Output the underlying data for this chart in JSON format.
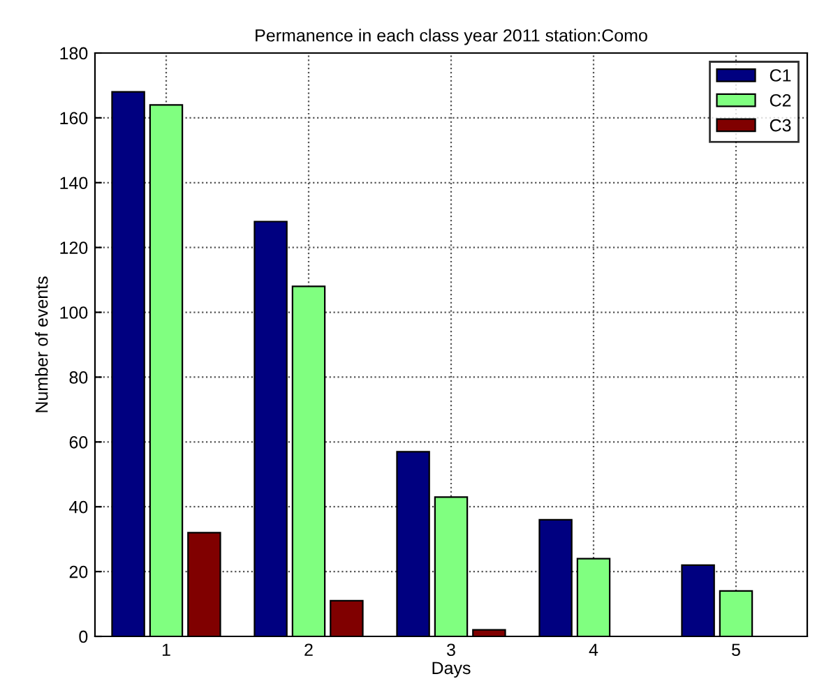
{
  "chart_data": {
    "type": "bar",
    "title": "Permanence in each class year 2011 station:Como",
    "xlabel": "Days",
    "ylabel": "Number of events",
    "categories": [
      "1",
      "2",
      "3",
      "4",
      "5"
    ],
    "series": [
      {
        "name": "C1",
        "color": "#000080",
        "values": [
          168,
          128,
          57,
          36,
          22
        ]
      },
      {
        "name": "C2",
        "color": "#80ff80",
        "values": [
          164,
          108,
          43,
          24,
          14
        ]
      },
      {
        "name": "C3",
        "color": "#800000",
        "values": [
          32,
          11,
          2,
          null,
          null
        ]
      }
    ],
    "ylim": [
      0,
      180
    ],
    "yticks": [
      0,
      20,
      40,
      60,
      80,
      100,
      120,
      140,
      160,
      180
    ],
    "grid": true,
    "legend": "top right"
  }
}
